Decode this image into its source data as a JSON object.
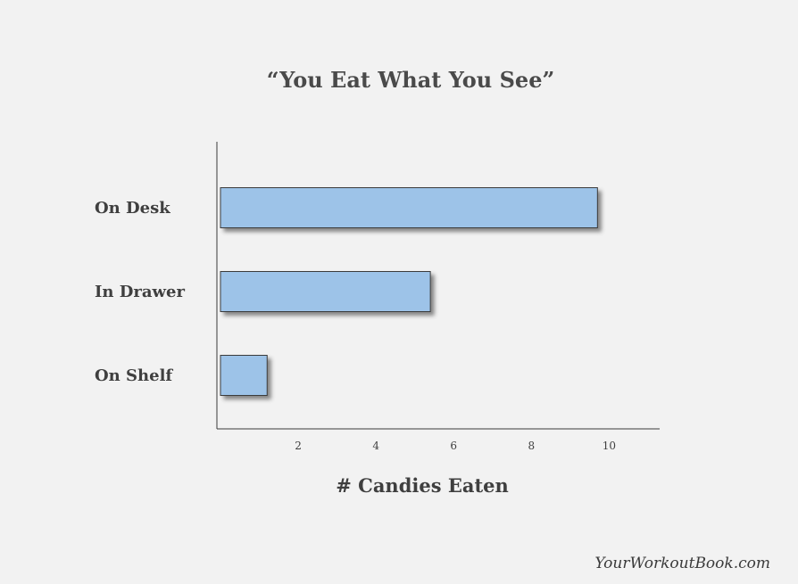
{
  "chart_data": {
    "type": "bar",
    "orientation": "horizontal",
    "title": "“You Eat What You See”",
    "xlabel": "# Candies Eaten",
    "ylabel": "",
    "categories": [
      "On Desk",
      "In Drawer",
      "On Shelf"
    ],
    "values": [
      9.7,
      5.4,
      1.2
    ],
    "xlim": [
      0,
      11.3
    ],
    "xticks": [
      2,
      4,
      6,
      8,
      10
    ],
    "grid": false,
    "legend": "none",
    "bar_color": "#9dc3e8",
    "bar_edge_color": "#3a3a3a"
  },
  "footer": {
    "credit": "YourWorkoutBook.com"
  }
}
